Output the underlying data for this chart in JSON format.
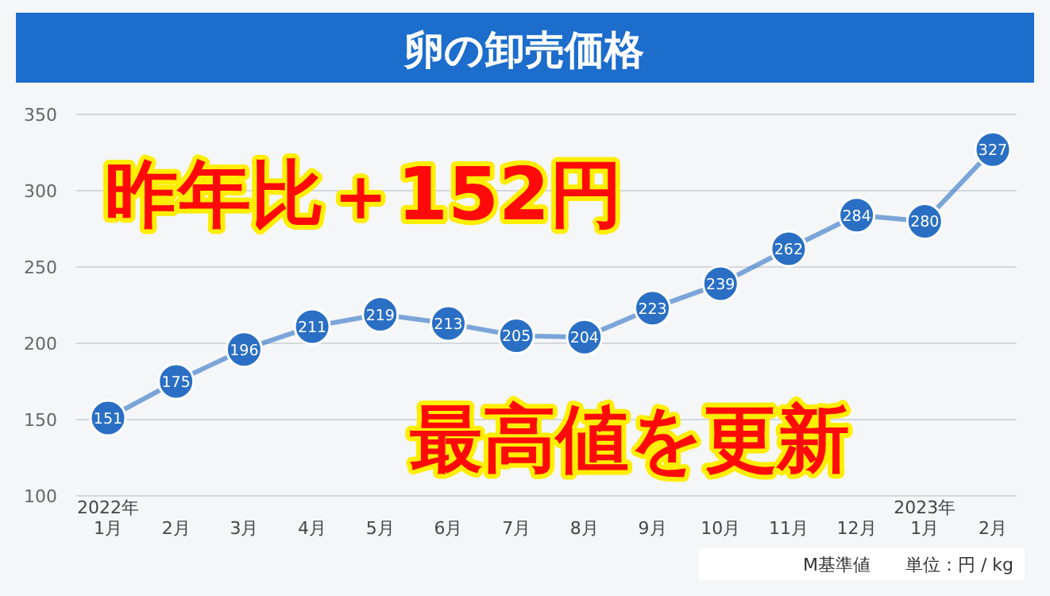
{
  "chart_data": {
    "type": "line",
    "title": "卵の卸売価格",
    "categories": [
      "2022年\n1月",
      "2月",
      "3月",
      "4月",
      "5月",
      "6月",
      "7月",
      "8月",
      "9月",
      "10月",
      "11月",
      "12月",
      "2023年\n1月",
      "2月"
    ],
    "series": [
      {
        "color": "#2a6fc4",
        "values": [
          151,
          175,
          196,
          211,
          219,
          213,
          205,
          204,
          223,
          239,
          262,
          284,
          280,
          327
        ]
      }
    ],
    "ylim": [
      100,
      350
    ],
    "yticks": [
      100,
      150,
      200,
      250,
      300,
      350
    ],
    "grid": "y",
    "marker": "circle",
    "line_style": "solid",
    "data_labels": true,
    "annotations": [
      "昨年比＋152円",
      "最高値を更新",
      "M基準値",
      "単位：円 / kg"
    ]
  }
}
